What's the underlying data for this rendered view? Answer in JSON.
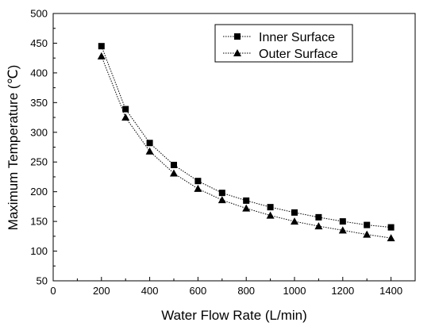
{
  "chart_data": {
    "type": "line",
    "xlabel": "Water Flow Rate (L/min)",
    "ylabel": "Maximum Temperature (℃)",
    "xlim": [
      0,
      1500
    ],
    "ylim": [
      50,
      500
    ],
    "x_ticks": [
      "0",
      "200",
      "400",
      "600",
      "800",
      "1000",
      "1200",
      "1400"
    ],
    "y_ticks": [
      "50",
      "100",
      "150",
      "200",
      "250",
      "300",
      "350",
      "400",
      "450",
      "500"
    ],
    "x": [
      200,
      300,
      400,
      500,
      600,
      700,
      800,
      900,
      1000,
      1100,
      1200,
      1300,
      1400
    ],
    "series": [
      {
        "name": "Inner Surface",
        "marker": "square",
        "values": [
          445,
          339,
          282,
          245,
          218,
          198,
          185,
          174,
          165,
          157,
          150,
          144,
          140
        ]
      },
      {
        "name": "Outer Surface",
        "marker": "triangle",
        "values": [
          428,
          325,
          268,
          231,
          205,
          186,
          172,
          160,
          150,
          142,
          135,
          128,
          122
        ]
      }
    ],
    "legend_position": "top-right",
    "grid": false,
    "colors": {
      "line": "#000000",
      "marker": "#000000"
    }
  }
}
